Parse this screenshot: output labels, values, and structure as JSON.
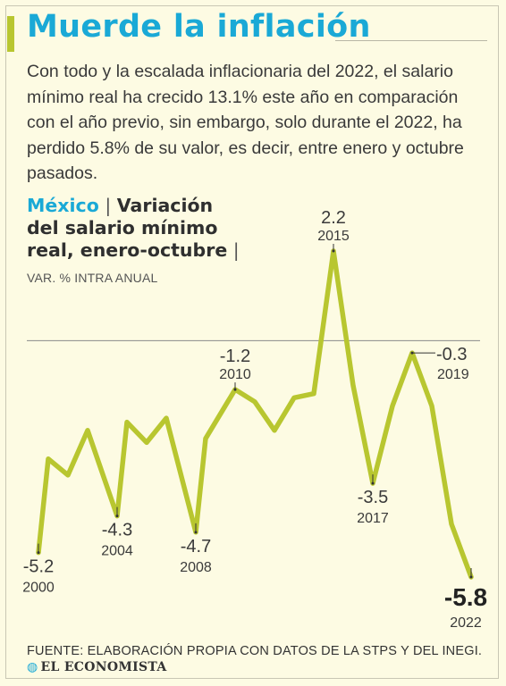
{
  "header": {
    "title": "Muerde la inflación",
    "intro": "Con todo y la escalada inflacionaria del 2022, el salario mínimo real ha crecido 13.1% este año en comparación con el año previo, sin embargo, solo durante el 2022, ha perdido 5.8% de su valor, es decir, entre enero y octubre pasados."
  },
  "chart_title": {
    "country": "México",
    "sep1": " | ",
    "text": "Variación del salario mínimo real, enero-octubre",
    "sep2": " |"
  },
  "unit": "VAR. % INTRA ANUAL",
  "footer": {
    "source": "FUENTE: ELABORACIÓN PROPIA CON DATOS DE LA STPS Y DEL INEGI.",
    "logo": "EL ECONOMISTA"
  },
  "colors": {
    "line": "#b8c630",
    "accent": "#1aa9d6",
    "background": "#fdfbe3"
  },
  "chart_data": {
    "type": "line",
    "title": "Variación del salario mínimo real, enero-octubre",
    "ylabel": "VAR. % INTRA ANUAL",
    "ylim": [
      -6,
      2.5
    ],
    "reference_line": 0,
    "grid": false,
    "series": [
      {
        "values": [
          {
            "x": 2000.0,
            "y": -5.2
          },
          {
            "x": 2000.5,
            "y": -2.9
          },
          {
            "x": 2001.5,
            "y": -3.3
          },
          {
            "x": 2002.5,
            "y": -2.2
          },
          {
            "x": 2004.0,
            "y": -4.3
          },
          {
            "x": 2004.5,
            "y": -2.0
          },
          {
            "x": 2005.5,
            "y": -2.5
          },
          {
            "x": 2006.5,
            "y": -1.9
          },
          {
            "x": 2008.0,
            "y": -4.7
          },
          {
            "x": 2008.5,
            "y": -2.4
          },
          {
            "x": 2010.0,
            "y": -1.2
          },
          {
            "x": 2011.0,
            "y": -1.5
          },
          {
            "x": 2012.0,
            "y": -2.2
          },
          {
            "x": 2013.0,
            "y": -1.4
          },
          {
            "x": 2014.0,
            "y": -1.3
          },
          {
            "x": 2015.0,
            "y": 2.2
          },
          {
            "x": 2016.0,
            "y": -1.1
          },
          {
            "x": 2017.0,
            "y": -3.5
          },
          {
            "x": 2018.0,
            "y": -1.6
          },
          {
            "x": 2019.0,
            "y": -0.3
          },
          {
            "x": 2020.0,
            "y": -1.6
          },
          {
            "x": 2021.0,
            "y": -4.5
          },
          {
            "x": 2022.0,
            "y": -5.8
          }
        ]
      }
    ],
    "annotations": [
      {
        "x": 2000,
        "y": -5.2,
        "value": "-5.2",
        "year": "2000",
        "position": "below"
      },
      {
        "x": 2004,
        "y": -4.3,
        "value": "-4.3",
        "year": "2004",
        "position": "below"
      },
      {
        "x": 2008,
        "y": -4.7,
        "value": "-4.7",
        "year": "2008",
        "position": "below"
      },
      {
        "x": 2010,
        "y": -1.2,
        "value": "-1.2",
        "year": "2010",
        "position": "above"
      },
      {
        "x": 2015,
        "y": 2.2,
        "value": "2.2",
        "year": "2015",
        "position": "above"
      },
      {
        "x": 2017,
        "y": -3.5,
        "value": "-3.5",
        "year": "2017",
        "position": "below"
      },
      {
        "x": 2019,
        "y": -0.3,
        "value": "-0.3",
        "year": "2019",
        "position": "right"
      },
      {
        "x": 2022,
        "y": -5.8,
        "value": "-5.8",
        "year": "2022",
        "position": "below",
        "emphasis": true
      }
    ]
  }
}
